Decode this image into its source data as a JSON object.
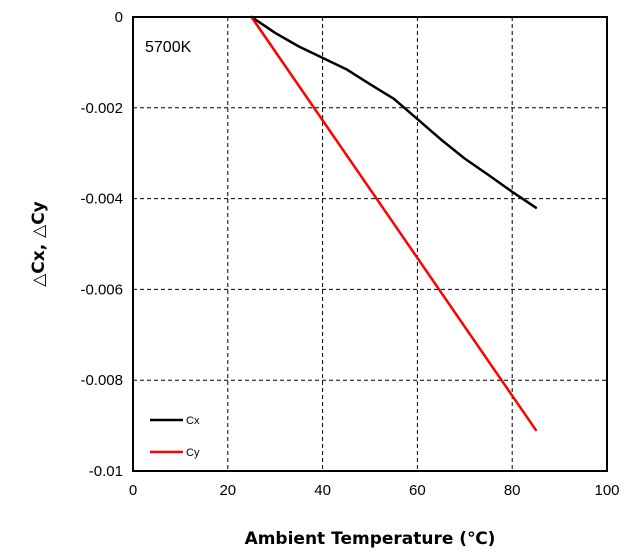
{
  "chart_data": {
    "type": "line",
    "annotation": "5700K",
    "xlabel": "Ambient Temperature (℃)",
    "ylabel": "△Cx, △Cy",
    "xlim": [
      0,
      100
    ],
    "ylim": [
      -0.01,
      0
    ],
    "xticks": [
      "0",
      "20",
      "40",
      "60",
      "80",
      "100"
    ],
    "yticks": [
      "0",
      "-0.002",
      "-0.004",
      "-0.006",
      "-0.008",
      "-0.01"
    ],
    "grid": true,
    "legend_position": "bottom-left",
    "series": [
      {
        "name": "Cx",
        "color": "#000000",
        "x": [
          25,
          30,
          35,
          40,
          45,
          50,
          55,
          60,
          65,
          70,
          75,
          80,
          85
        ],
        "y": [
          0,
          -0.00035,
          -0.00065,
          -0.0009,
          -0.00115,
          -0.00148,
          -0.0018,
          -0.00225,
          -0.0027,
          -0.00312,
          -0.00348,
          -0.00385,
          -0.0042
        ]
      },
      {
        "name": "Cy",
        "color": "#ff0000",
        "x": [
          25,
          85
        ],
        "y": [
          0,
          -0.0091
        ]
      }
    ]
  }
}
